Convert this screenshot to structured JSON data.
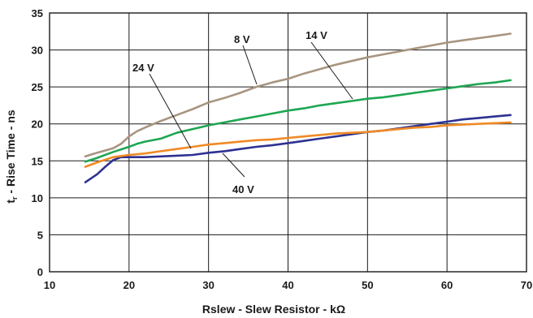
{
  "chart_data": {
    "type": "line",
    "xlabel": "Rslew - Slew Resistor - kΩ",
    "ylabel": "t_r - Rise Time - ns",
    "ylabel_main": "t",
    "ylabel_sub": "r",
    "ylabel_rest": " - Rise Time - ns",
    "xlim": [
      10,
      70
    ],
    "ylim": [
      0,
      35
    ],
    "xticks": [
      "10",
      "20",
      "30",
      "40",
      "50",
      "60",
      "70"
    ],
    "yticks": [
      "0",
      "5",
      "10",
      "15",
      "20",
      "25",
      "30",
      "35"
    ],
    "grid": true,
    "series": [
      {
        "name": "8 V",
        "color": "#a89580",
        "points": [
          [
            14.5,
            15.6
          ],
          [
            16,
            16.1
          ],
          [
            18,
            16.7
          ],
          [
            19,
            17.3
          ],
          [
            20,
            18.3
          ],
          [
            21,
            19.0
          ],
          [
            22,
            19.5
          ],
          [
            24,
            20.4
          ],
          [
            26,
            21.2
          ],
          [
            28,
            22.0
          ],
          [
            30,
            22.9
          ],
          [
            32,
            23.5
          ],
          [
            34,
            24.2
          ],
          [
            36,
            25.0
          ],
          [
            38,
            25.6
          ],
          [
            40,
            26.1
          ],
          [
            42,
            26.8
          ],
          [
            44,
            27.4
          ],
          [
            46,
            28.0
          ],
          [
            48,
            28.5
          ],
          [
            50,
            29.0
          ],
          [
            52,
            29.4
          ],
          [
            54,
            29.8
          ],
          [
            56,
            30.2
          ],
          [
            58,
            30.6
          ],
          [
            60,
            31.0
          ],
          [
            62,
            31.3
          ],
          [
            64,
            31.6
          ],
          [
            66,
            31.9
          ],
          [
            68,
            32.2
          ]
        ]
      },
      {
        "name": "14 V",
        "color": "#1ea651",
        "points": [
          [
            14.5,
            14.9
          ],
          [
            16,
            15.4
          ],
          [
            18,
            16.2
          ],
          [
            20,
            16.9
          ],
          [
            21,
            17.3
          ],
          [
            22,
            17.6
          ],
          [
            24,
            18.0
          ],
          [
            26,
            18.8
          ],
          [
            28,
            19.3
          ],
          [
            30,
            19.8
          ],
          [
            32,
            20.2
          ],
          [
            34,
            20.6
          ],
          [
            36,
            21.0
          ],
          [
            38,
            21.4
          ],
          [
            40,
            21.8
          ],
          [
            42,
            22.1
          ],
          [
            44,
            22.5
          ],
          [
            46,
            22.8
          ],
          [
            48,
            23.1
          ],
          [
            50,
            23.4
          ],
          [
            52,
            23.6
          ],
          [
            54,
            23.9
          ],
          [
            56,
            24.2
          ],
          [
            58,
            24.5
          ],
          [
            60,
            24.8
          ],
          [
            62,
            25.1
          ],
          [
            64,
            25.4
          ],
          [
            66,
            25.6
          ],
          [
            68,
            25.9
          ]
        ]
      },
      {
        "name": "40 V",
        "color": "#2e3192",
        "points": [
          [
            14.5,
            12.1
          ],
          [
            16,
            13.2
          ],
          [
            17,
            14.2
          ],
          [
            18,
            15.1
          ],
          [
            19,
            15.5
          ],
          [
            20,
            15.5
          ],
          [
            22,
            15.5
          ],
          [
            24,
            15.6
          ],
          [
            26,
            15.7
          ],
          [
            28,
            15.8
          ],
          [
            30,
            16.1
          ],
          [
            32,
            16.3
          ],
          [
            34,
            16.6
          ],
          [
            36,
            16.9
          ],
          [
            38,
            17.1
          ],
          [
            40,
            17.4
          ],
          [
            42,
            17.7
          ],
          [
            44,
            18.0
          ],
          [
            46,
            18.3
          ],
          [
            48,
            18.6
          ],
          [
            50,
            18.9
          ],
          [
            52,
            19.1
          ],
          [
            54,
            19.4
          ],
          [
            56,
            19.7
          ],
          [
            58,
            20.0
          ],
          [
            60,
            20.3
          ],
          [
            62,
            20.6
          ],
          [
            64,
            20.8
          ],
          [
            66,
            21.0
          ],
          [
            68,
            21.2
          ]
        ]
      },
      {
        "name": "24 V",
        "color": "#f08a24",
        "points": [
          [
            14.5,
            14.2
          ],
          [
            16,
            14.8
          ],
          [
            18,
            15.5
          ],
          [
            20,
            15.8
          ],
          [
            22,
            16.0
          ],
          [
            24,
            16.3
          ],
          [
            26,
            16.6
          ],
          [
            28,
            16.9
          ],
          [
            30,
            17.2
          ],
          [
            32,
            17.4
          ],
          [
            34,
            17.6
          ],
          [
            36,
            17.8
          ],
          [
            38,
            17.9
          ],
          [
            40,
            18.1
          ],
          [
            42,
            18.3
          ],
          [
            44,
            18.5
          ],
          [
            46,
            18.7
          ],
          [
            48,
            18.8
          ],
          [
            50,
            18.9
          ],
          [
            52,
            19.1
          ],
          [
            54,
            19.3
          ],
          [
            56,
            19.5
          ],
          [
            58,
            19.6
          ],
          [
            60,
            19.8
          ],
          [
            62,
            19.9
          ],
          [
            64,
            20.0
          ],
          [
            66,
            20.1
          ],
          [
            68,
            20.2
          ]
        ]
      }
    ],
    "annotations": [
      {
        "text": "8 V",
        "series": "8 V",
        "anchor": [
          36,
          25.0
        ]
      },
      {
        "text": "14 V",
        "series": "14 V",
        "anchor": [
          42.5,
          22.1
        ]
      },
      {
        "text": "24 V",
        "series": "24 V",
        "anchor": [
          28,
          16.9
        ]
      },
      {
        "text": "40 V",
        "series": "40 V",
        "anchor": [
          28.5,
          16.0
        ]
      }
    ]
  }
}
